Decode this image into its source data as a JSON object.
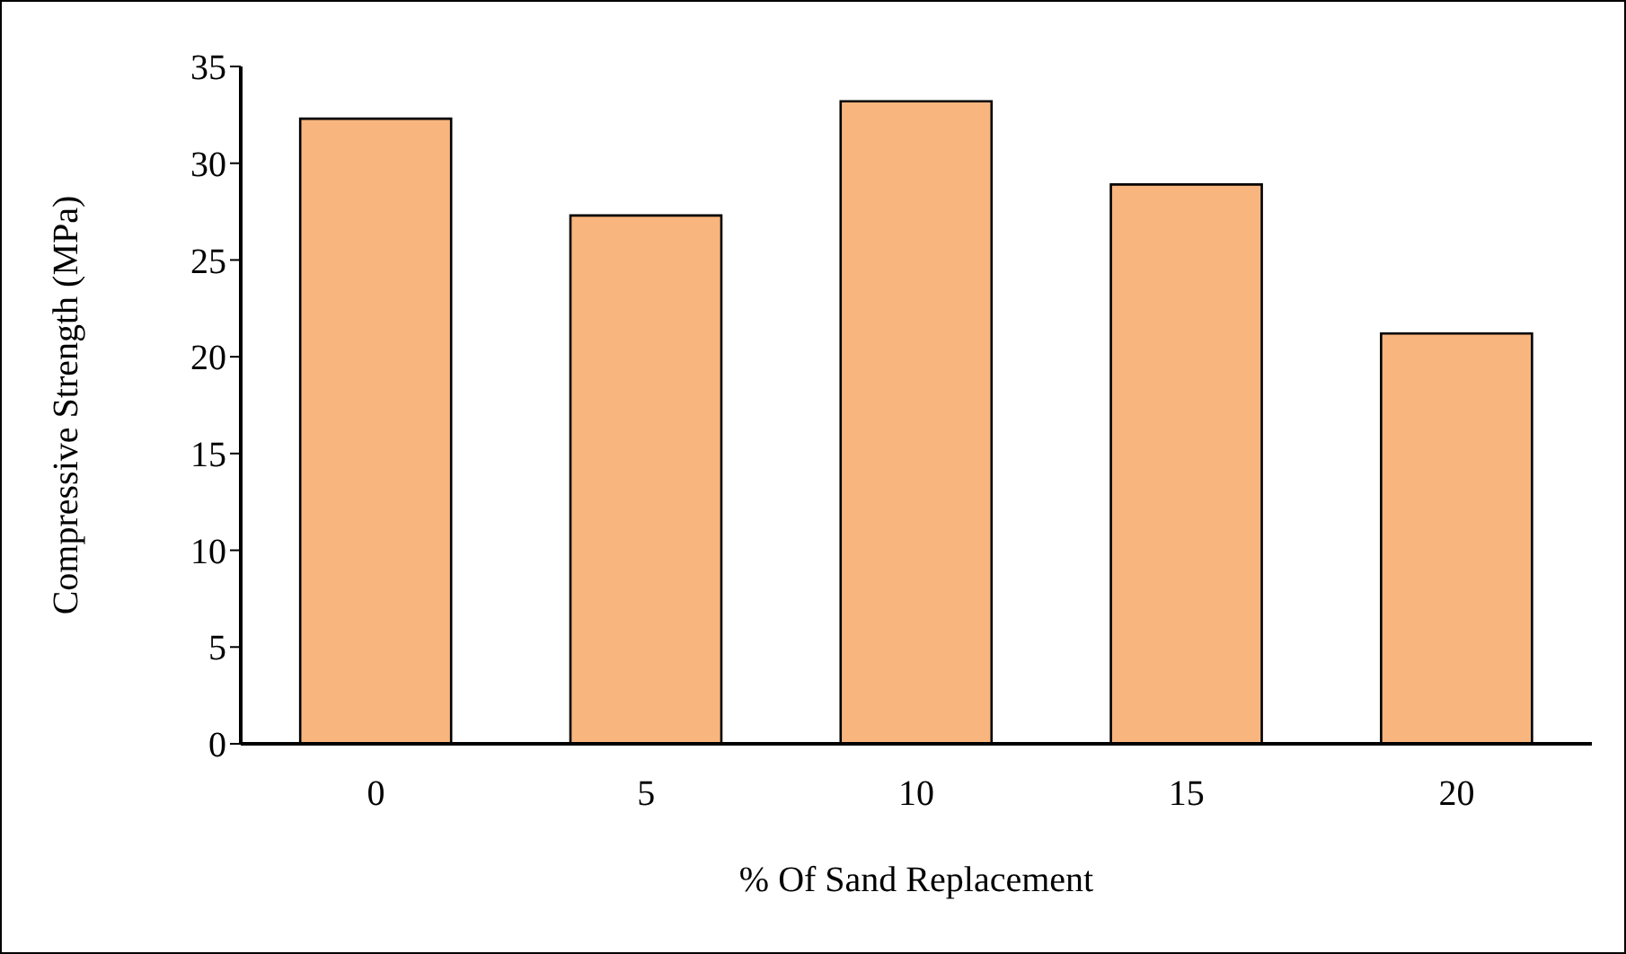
{
  "chart_data": {
    "type": "bar",
    "xlabel": "% Of Sand Replacement",
    "ylabel": "Compressive Strength (MPa)",
    "categories": [
      "0",
      "5",
      "10",
      "15",
      "20"
    ],
    "values": [
      32.3,
      27.3,
      33.2,
      28.9,
      21.2
    ],
    "color": "#f8b57e",
    "ylim": [
      0,
      35
    ],
    "yticks": [
      0,
      5,
      10,
      15,
      20,
      25,
      30,
      35
    ]
  }
}
